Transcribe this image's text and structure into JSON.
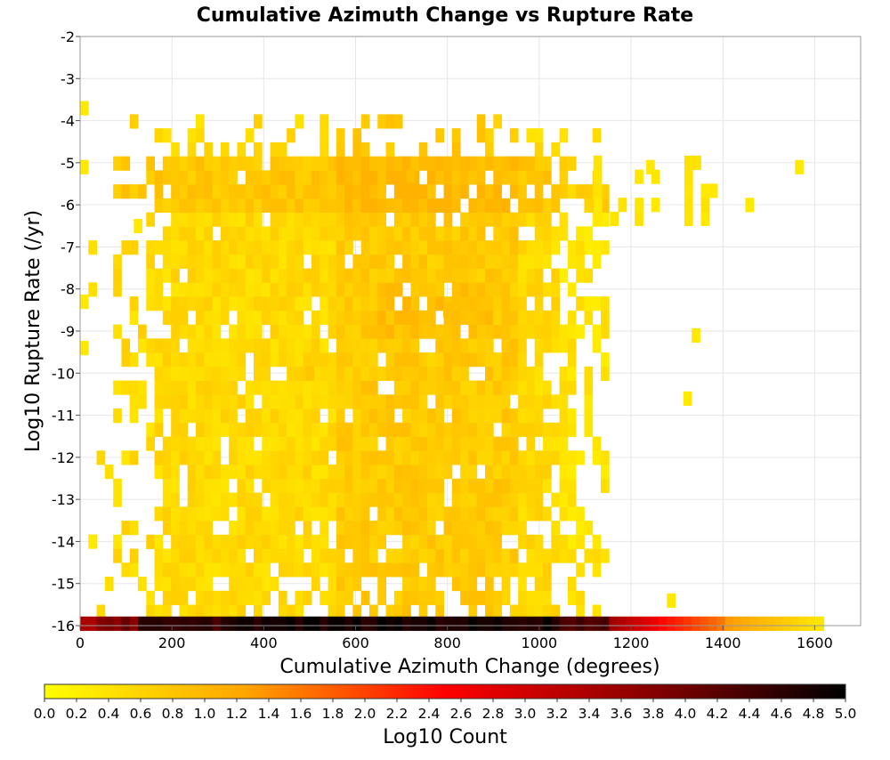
{
  "chart_data": {
    "type": "heatmap",
    "title": "Cumulative Azimuth Change vs Rupture Rate",
    "xlabel": "Cumulative Azimuth Change (degrees)",
    "ylabel": "Log10 Rupture Rate (/yr)",
    "xlim": [
      0,
      1700
    ],
    "ylim": [
      -16,
      -2
    ],
    "x_ticks": [
      0,
      200,
      400,
      600,
      800,
      1000,
      1200,
      1400,
      1600
    ],
    "y_ticks": [
      -2,
      -3,
      -4,
      -5,
      -6,
      -7,
      -8,
      -9,
      -10,
      -11,
      -12,
      -13,
      -14,
      -15,
      -16
    ],
    "grid": true,
    "x_bin_width": 18,
    "y_bin_width": 0.333,
    "bottom_row_note": "a dense row of bins at -16 spans x from 0 to about 1620; darkest (about 5.0) at 300-1050, fading to about 0.3 near 1620",
    "colorbar": {
      "label": "Log10 Count",
      "min": 0.0,
      "max": 5.0,
      "ticks": [
        "0.0",
        "0.2",
        "0.4",
        "0.6",
        "0.8",
        "1.0",
        "1.2",
        "1.4",
        "1.6",
        "1.8",
        "2.0",
        "2.2",
        "2.4",
        "2.6",
        "2.8",
        "3.0",
        "3.2",
        "3.4",
        "3.6",
        "3.8",
        "4.0",
        "4.2",
        "4.4",
        "4.6",
        "4.8",
        "5.0"
      ],
      "colors": [
        "#ffff00",
        "#ffa500",
        "#ff0000",
        "#8b0000",
        "#000000"
      ]
    },
    "approximate_cells": [
      {
        "x": 9,
        "y": -3.7,
        "value": 0.3
      },
      {
        "x": 9,
        "y": -5.1,
        "value": 0.3
      },
      {
        "x": 9,
        "y": -8.3,
        "value": 0.3
      },
      {
        "x": 9,
        "y": -9.4,
        "value": 0.3
      },
      {
        "x": 27,
        "y": -14.0,
        "value": 0.3
      },
      {
        "x": 126,
        "y": -6.5,
        "value": 0.3
      },
      {
        "x": 1242,
        "y": -5.1,
        "value": 0.3
      },
      {
        "x": 1341,
        "y": -9.1,
        "value": 0.3
      },
      {
        "x": 1458,
        "y": -6.0,
        "value": 0.3
      },
      {
        "x": 1566,
        "y": -5.1,
        "value": 0.3
      },
      {
        "x": 1323,
        "y": -10.6,
        "value": 0.3
      },
      {
        "x": 1287,
        "y": -15.4,
        "value": 0.3
      },
      {
        "x": 720,
        "y": -5.3,
        "value": 0.9
      },
      {
        "x": 800,
        "y": -8.5,
        "value": 0.9
      },
      {
        "x": 500,
        "y": -10.0,
        "value": 0.8
      },
      {
        "x": 1600,
        "y": -16,
        "value": 0.3
      }
    ]
  }
}
